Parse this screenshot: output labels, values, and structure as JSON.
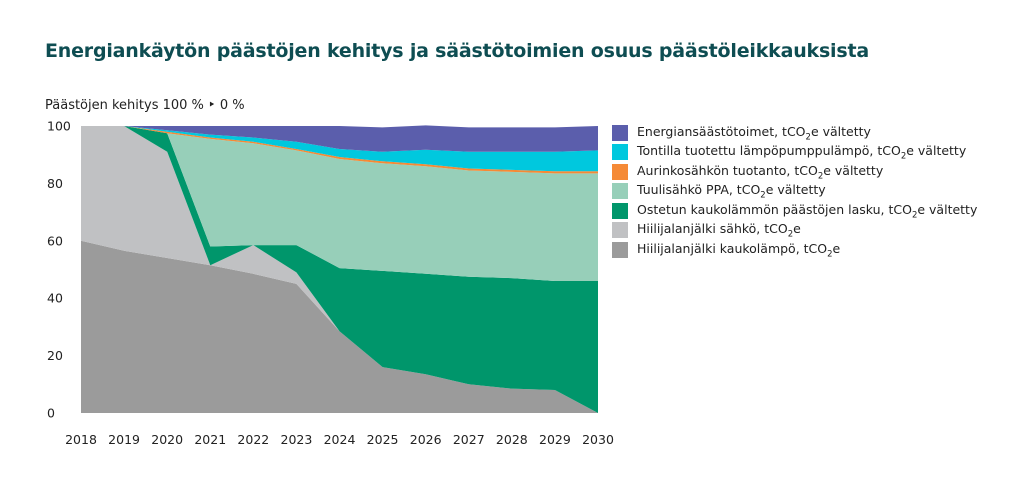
{
  "title": "Energiankäytön päästöjen kehitys ja säästötoimien osuus päästöleikkauksista",
  "chart_data": {
    "type": "area",
    "title": "Energiankäytön päästöjen kehitys ja säästötoimien osuus päästöleikkauksista",
    "ylabel": "Päästöjen kehitys 100 % ‣ 0 %",
    "xlabel": "",
    "ylim": [
      0,
      100
    ],
    "yticks": [
      "0",
      "20",
      "40",
      "60",
      "80",
      "100"
    ],
    "x": [
      "2018",
      "2019",
      "2020",
      "2021",
      "2022",
      "2023",
      "2024",
      "2025",
      "2026",
      "2027",
      "2028",
      "2029",
      "2030"
    ],
    "series": [
      {
        "name": "Hiilijalanjälki kaukolämpö, tCO2e",
        "color": "#9b9b9b",
        "pts": [
          [
            2018,
            60
          ],
          [
            2019,
            56.5
          ],
          [
            2020,
            54
          ],
          [
            2021,
            51.5
          ],
          [
            2022,
            48.5
          ],
          [
            2023,
            45
          ],
          [
            2024,
            28.5
          ],
          [
            2025,
            16
          ],
          [
            2026,
            13.5
          ],
          [
            2027,
            10
          ],
          [
            2028,
            8.5
          ],
          [
            2029,
            8
          ],
          [
            2030,
            0
          ]
        ]
      },
      {
        "name": "Hiilijalanjälki sähkö, tCO2e",
        "color": "#c0c1c3",
        "pts": [
          [
            2018,
            40
          ],
          [
            2019,
            43.5
          ],
          [
            2020,
            37
          ],
          [
            2021,
            0
          ],
          [
            2022,
            10
          ],
          [
            2023,
            4
          ],
          [
            2024,
            0
          ],
          [
            2025,
            0
          ],
          [
            2026,
            0
          ],
          [
            2027,
            0
          ],
          [
            2028,
            0
          ],
          [
            2029,
            0
          ],
          [
            2030,
            0
          ]
        ]
      },
      {
        "name": "Ostetun kaukolämmön päästöjen lasku, tCO2e vältetty",
        "color": "#00966b",
        "pts": [
          [
            2018,
            0
          ],
          [
            2019,
            0
          ],
          [
            2020,
            6.5
          ],
          [
            2021,
            6.5
          ],
          [
            2022,
            0
          ],
          [
            2023,
            9.5
          ],
          [
            2024,
            22
          ],
          [
            2025,
            33.5
          ],
          [
            2026,
            35
          ],
          [
            2027,
            37.5
          ],
          [
            2028,
            38.5
          ],
          [
            2029,
            38
          ],
          [
            2030,
            46
          ]
        ]
      },
      {
        "name": "Tuulisähkö PPA, tCO2e vältetty",
        "color": "#97cfb9",
        "pts": [
          [
            2018,
            0
          ],
          [
            2019,
            0
          ],
          [
            2020,
            0
          ],
          [
            2021,
            37.5
          ],
          [
            2022,
            35.5
          ],
          [
            2023,
            33
          ],
          [
            2024,
            38
          ],
          [
            2025,
            37.5
          ],
          [
            2026,
            37.5
          ],
          [
            2027,
            37
          ],
          [
            2028,
            37
          ],
          [
            2029,
            37.5
          ],
          [
            2030,
            37.5
          ]
        ]
      },
      {
        "name": "Aurinkosähkön tuotanto, tCO2e vältetty",
        "color": "#f58a36",
        "pts": [
          [
            2018,
            0
          ],
          [
            2019,
            0
          ],
          [
            2020,
            0.5
          ],
          [
            2021,
            0.5
          ],
          [
            2022,
            0.5
          ],
          [
            2023,
            0.5
          ],
          [
            2024,
            0.7
          ],
          [
            2025,
            0.7
          ],
          [
            2026,
            0.7
          ],
          [
            2027,
            0.7
          ],
          [
            2028,
            0.7
          ],
          [
            2029,
            0.7
          ],
          [
            2030,
            0.7
          ]
        ]
      },
      {
        "name": "Tontilla tuotettu lämpöpumppulämpö, tCO2e vältetty",
        "color": "#00c8de",
        "pts": [
          [
            2018,
            0
          ],
          [
            2019,
            0
          ],
          [
            2020,
            0.5
          ],
          [
            2021,
            1
          ],
          [
            2022,
            1.5
          ],
          [
            2023,
            2.5
          ],
          [
            2024,
            2.8
          ],
          [
            2025,
            3.3
          ],
          [
            2026,
            5
          ],
          [
            2027,
            5.8
          ],
          [
            2028,
            6.3
          ],
          [
            2029,
            6.8
          ],
          [
            2030,
            7.3
          ]
        ]
      },
      {
        "name": "Energiansäästötoimet, tCO2e vältetty",
        "color": "#5b5eac",
        "pts": [
          [
            2018,
            0
          ],
          [
            2019,
            0
          ],
          [
            2020,
            1.5
          ],
          [
            2021,
            3
          ],
          [
            2022,
            4
          ],
          [
            2023,
            5.5
          ],
          [
            2024,
            8
          ],
          [
            2025,
            8.5
          ],
          [
            2026,
            8.5
          ],
          [
            2027,
            8.5
          ],
          [
            2028,
            8.5
          ],
          [
            2029,
            8.5
          ],
          [
            2030,
            8.5
          ]
        ]
      }
    ],
    "legend": [
      {
        "color": "#5b5eac",
        "pre": "Energiansäästötoimet, tCO",
        "sub": "2",
        "post": "e vältetty"
      },
      {
        "color": "#00c8de",
        "pre": "Tontilla tuotettu lämpöpumppulämpö, tCO",
        "sub": "2",
        "post": "e vältetty"
      },
      {
        "color": "#f58a36",
        "pre": "Aurinkosähkön tuotanto, tCO",
        "sub": "2",
        "post": "e vältetty"
      },
      {
        "color": "#97cfb9",
        "pre": "Tuulisähkö PPA, tCO",
        "sub": "2",
        "post": "e vältetty"
      },
      {
        "color": "#00966b",
        "pre": "Ostetun kaukolämmön päästöjen lasku, tCO",
        "sub": "2",
        "post": "e vältetty"
      },
      {
        "color": "#c0c1c3",
        "pre": "Hiilijalanjälki sähkö, tCO",
        "sub": "2",
        "post": "e"
      },
      {
        "color": "#9b9b9b",
        "pre": "Hiilijalanjälki kaukolämpö, tCO",
        "sub": "2",
        "post": "e"
      }
    ],
    "legend_position": "right"
  }
}
